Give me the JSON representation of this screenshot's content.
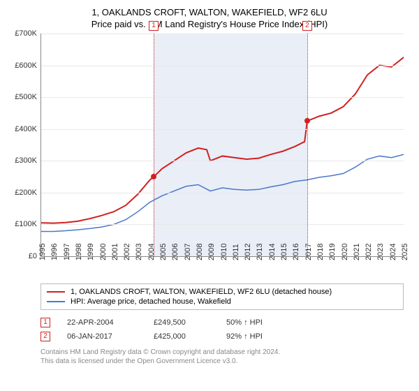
{
  "title_line1": "1, OAKLANDS CROFT, WALTON, WAKEFIELD, WF2 6LU",
  "title_line2": "Price paid vs. HM Land Registry's House Price Index (HPI)",
  "chart": {
    "type": "line",
    "x_start_year": 1995,
    "x_end_year": 2025,
    "ylim": [
      0,
      700000
    ],
    "ytick_step": 100000,
    "ytick_labels": [
      "£0",
      "£100K",
      "£200K",
      "£300K",
      "£400K",
      "£500K",
      "£600K",
      "£700K"
    ],
    "xtick_years": [
      1995,
      1996,
      1997,
      1998,
      1999,
      2000,
      2001,
      2002,
      2003,
      2004,
      2005,
      2006,
      2007,
      2008,
      2009,
      2010,
      2011,
      2012,
      2013,
      2014,
      2015,
      2016,
      2017,
      2018,
      2019,
      2020,
      2021,
      2022,
      2023,
      2024,
      2025
    ],
    "grid_color": "#e8e8e8",
    "axis_color": "#888888",
    "background_color": "#ffffff",
    "series": [
      {
        "name": "property",
        "color": "#d02020",
        "width": 2,
        "label": "1, OAKLANDS CROFT, WALTON, WAKEFIELD, WF2 6LU (detached house)",
        "points": [
          [
            1995.0,
            105000
          ],
          [
            1996.0,
            104000
          ],
          [
            1997.0,
            106000
          ],
          [
            1998.0,
            110000
          ],
          [
            1999.0,
            118000
          ],
          [
            2000.0,
            128000
          ],
          [
            2001.0,
            140000
          ],
          [
            2002.0,
            160000
          ],
          [
            2003.0,
            195000
          ],
          [
            2004.0,
            240000
          ],
          [
            2004.31,
            249500
          ],
          [
            2005.0,
            275000
          ],
          [
            2006.0,
            300000
          ],
          [
            2007.0,
            325000
          ],
          [
            2008.0,
            340000
          ],
          [
            2008.7,
            335000
          ],
          [
            2009.0,
            300000
          ],
          [
            2010.0,
            315000
          ],
          [
            2011.0,
            310000
          ],
          [
            2012.0,
            305000
          ],
          [
            2013.0,
            308000
          ],
          [
            2014.0,
            320000
          ],
          [
            2015.0,
            330000
          ],
          [
            2016.0,
            345000
          ],
          [
            2016.8,
            360000
          ],
          [
            2017.02,
            425000
          ],
          [
            2018.0,
            440000
          ],
          [
            2019.0,
            450000
          ],
          [
            2020.0,
            470000
          ],
          [
            2021.0,
            510000
          ],
          [
            2022.0,
            570000
          ],
          [
            2023.0,
            600000
          ],
          [
            2024.0,
            595000
          ],
          [
            2025.0,
            625000
          ],
          [
            2025.3,
            635000
          ]
        ]
      },
      {
        "name": "hpi",
        "color": "#4a78c8",
        "width": 1.5,
        "label": "HPI: Average price, detached house, Wakefield",
        "points": [
          [
            1995.0,
            78000
          ],
          [
            1996.0,
            78000
          ],
          [
            1997.0,
            80000
          ],
          [
            1998.0,
            83000
          ],
          [
            1999.0,
            87000
          ],
          [
            2000.0,
            92000
          ],
          [
            2001.0,
            100000
          ],
          [
            2002.0,
            115000
          ],
          [
            2003.0,
            140000
          ],
          [
            2004.0,
            170000
          ],
          [
            2005.0,
            190000
          ],
          [
            2006.0,
            205000
          ],
          [
            2007.0,
            220000
          ],
          [
            2008.0,
            225000
          ],
          [
            2009.0,
            205000
          ],
          [
            2010.0,
            215000
          ],
          [
            2011.0,
            210000
          ],
          [
            2012.0,
            208000
          ],
          [
            2013.0,
            210000
          ],
          [
            2014.0,
            218000
          ],
          [
            2015.0,
            225000
          ],
          [
            2016.0,
            235000
          ],
          [
            2017.0,
            240000
          ],
          [
            2018.0,
            248000
          ],
          [
            2019.0,
            253000
          ],
          [
            2020.0,
            260000
          ],
          [
            2021.0,
            280000
          ],
          [
            2022.0,
            305000
          ],
          [
            2023.0,
            315000
          ],
          [
            2024.0,
            310000
          ],
          [
            2025.0,
            320000
          ],
          [
            2025.3,
            322000
          ]
        ]
      }
    ],
    "shade_band": {
      "from_year": 2004.31,
      "to_year": 2017.02,
      "color": "#dde5f3"
    },
    "sale_points": [
      {
        "n": "1",
        "year": 2004.31,
        "value": 249500
      },
      {
        "n": "2",
        "year": 2017.02,
        "value": 425000
      }
    ]
  },
  "legend": {
    "items": [
      {
        "color": "#d02020",
        "label": "1, OAKLANDS CROFT, WALTON, WAKEFIELD, WF2 6LU (detached house)"
      },
      {
        "color": "#4a78c8",
        "label": "HPI: Average price, detached house, Wakefield"
      }
    ]
  },
  "data_rows": [
    {
      "n": "1",
      "date": "22-APR-2004",
      "price": "£249,500",
      "pct": "50% ↑ HPI"
    },
    {
      "n": "2",
      "date": "06-JAN-2017",
      "price": "£425,000",
      "pct": "92% ↑ HPI"
    }
  ],
  "footer_line1": "Contains HM Land Registry data © Crown copyright and database right 2024.",
  "footer_line2": "This data is licensed under the Open Government Licence v3.0."
}
